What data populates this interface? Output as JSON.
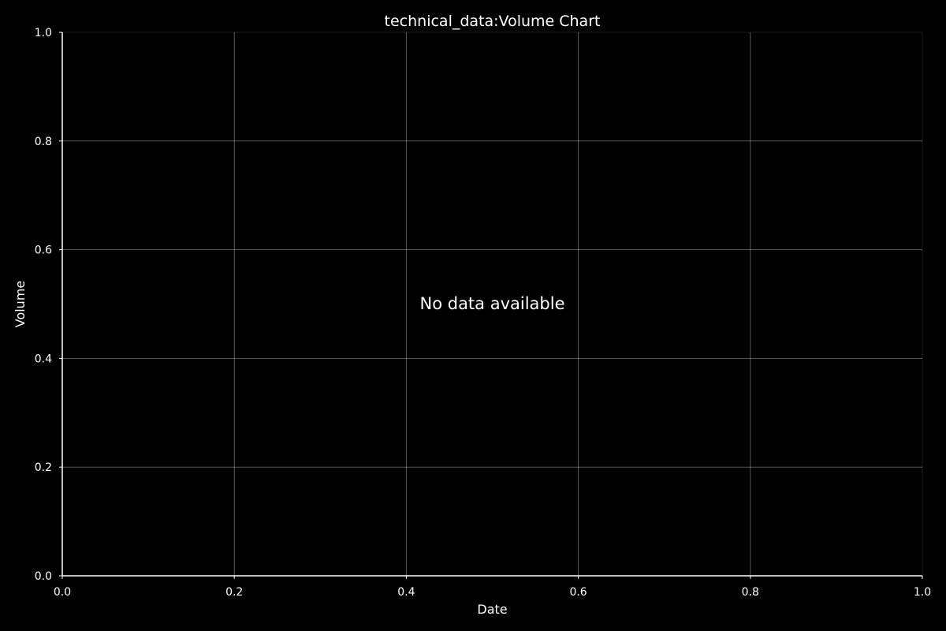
{
  "chart_data": {
    "type": "line",
    "title": "technical_data:Volume Chart",
    "xlabel": "Date",
    "ylabel": "Volume",
    "xlim": [
      0.0,
      1.0
    ],
    "ylim": [
      0.0,
      1.0
    ],
    "x_ticks": [
      "0.0",
      "0.2",
      "0.4",
      "0.6",
      "0.8",
      "1.0"
    ],
    "y_ticks": [
      "0.0",
      "0.2",
      "0.4",
      "0.6",
      "0.8",
      "1.0"
    ],
    "grid": true,
    "series": [],
    "message": "No data available"
  },
  "colors": {
    "background": "#000000",
    "text": "#ffffff",
    "grid": "#ffffff"
  }
}
